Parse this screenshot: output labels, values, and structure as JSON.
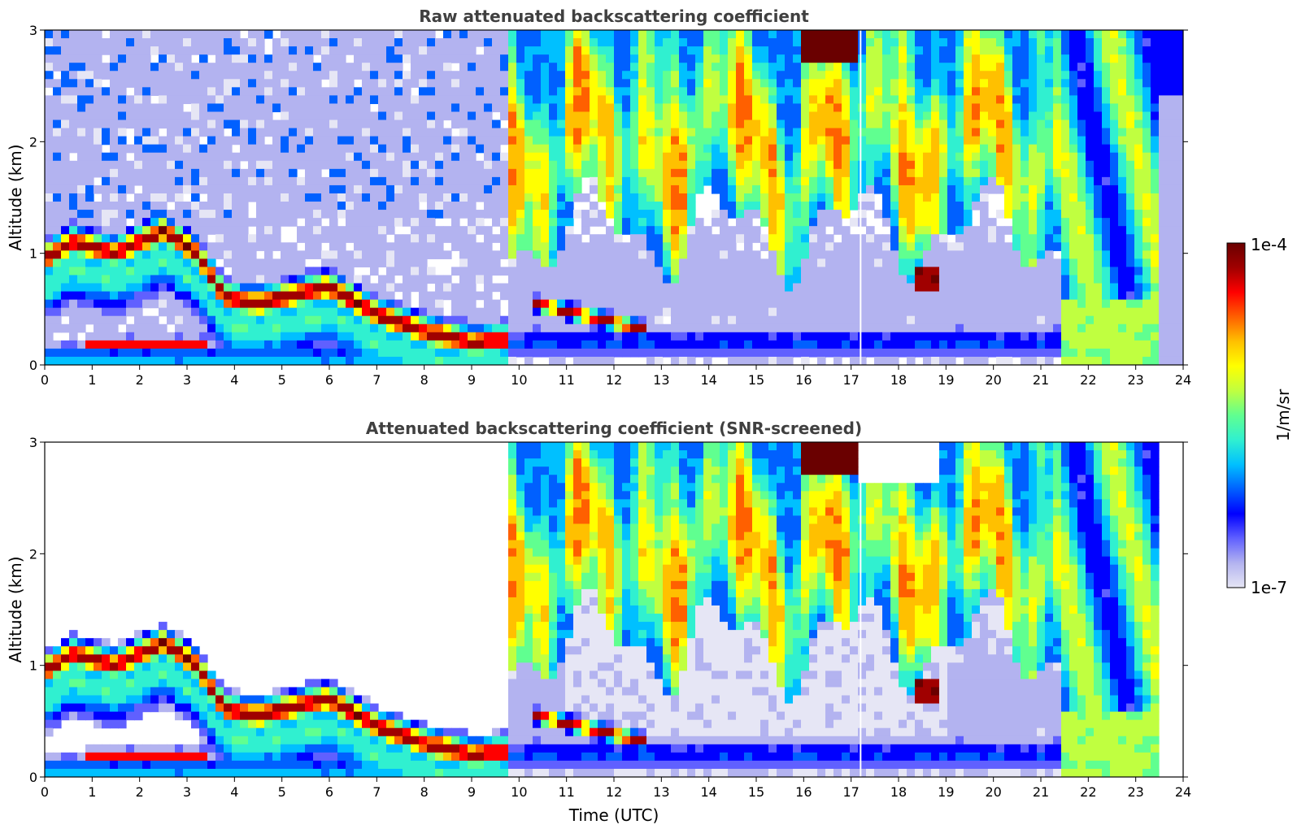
{
  "chart_data": [
    {
      "type": "heatmap",
      "title": "Raw attenuated backscattering coefficient",
      "xlabel": "",
      "ylabel": "Altitude (km)",
      "xlim": [
        0,
        24
      ],
      "ylim": [
        0,
        3
      ],
      "xticks": [
        "0",
        "1",
        "2",
        "3",
        "4",
        "5",
        "6",
        "7",
        "8",
        "9",
        "10",
        "11",
        "12",
        "13",
        "14",
        "15",
        "16",
        "17",
        "18",
        "19",
        "20",
        "21",
        "22",
        "23",
        "24"
      ],
      "yticks": [
        "0",
        "1",
        "2",
        "3"
      ],
      "colorbar": {
        "min_label": "1e-7",
        "max_label": "1e-4",
        "label": "1/m/sr"
      },
      "features": {
        "low_cloud_band": [
          {
            "t": 0.0,
            "alt": 0.95
          },
          {
            "t": 0.6,
            "alt": 1.1
          },
          {
            "t": 1.5,
            "alt": 1.0
          },
          {
            "t": 2.5,
            "alt": 1.2
          },
          {
            "t": 3.2,
            "alt": 1.0
          },
          {
            "t": 3.8,
            "alt": 0.6
          },
          {
            "t": 4.5,
            "alt": 0.55
          },
          {
            "t": 6.0,
            "alt": 0.7
          },
          {
            "t": 7.0,
            "alt": 0.45
          },
          {
            "t": 8.0,
            "alt": 0.3
          },
          {
            "t": 9.0,
            "alt": 0.2
          },
          {
            "t": 10.3,
            "alt": 0.25
          }
        ],
        "boundary_layer_top": [
          {
            "t": 10.5,
            "alt": 0.6
          },
          {
            "t": 11.5,
            "alt": 0.5
          },
          {
            "t": 12.5,
            "alt": 0.35
          }
        ],
        "high_cloud_top": [
          {
            "t": 9.7,
            "alt": 3.0
          },
          {
            "t": 17.0,
            "alt": 3.0
          }
        ]
      }
    },
    {
      "type": "heatmap",
      "title": "Attenuated backscattering coefficient (SNR-screened)",
      "xlabel": "Time (UTC)",
      "ylabel": "Altitude (km)",
      "xlim": [
        0,
        24
      ],
      "ylim": [
        0,
        3
      ],
      "xticks": [
        "0",
        "1",
        "2",
        "3",
        "4",
        "5",
        "6",
        "7",
        "8",
        "9",
        "10",
        "11",
        "12",
        "13",
        "14",
        "15",
        "16",
        "17",
        "18",
        "19",
        "20",
        "21",
        "22",
        "23",
        "24"
      ],
      "yticks": [
        "0",
        "1",
        "2",
        "3"
      ],
      "colorbar": {
        "min_label": "1e-7",
        "max_label": "1e-4",
        "label": "1/m/sr"
      }
    }
  ],
  "colors": {
    "scale": [
      "#e6e6f5",
      "#b3b3f0",
      "#6060ff",
      "#0000ff",
      "#0060ff",
      "#00c0ff",
      "#30f0d0",
      "#60ff90",
      "#c0ff40",
      "#ffff00",
      "#ffc000",
      "#ff6000",
      "#ff0000",
      "#a00000",
      "#6a0000"
    ]
  }
}
